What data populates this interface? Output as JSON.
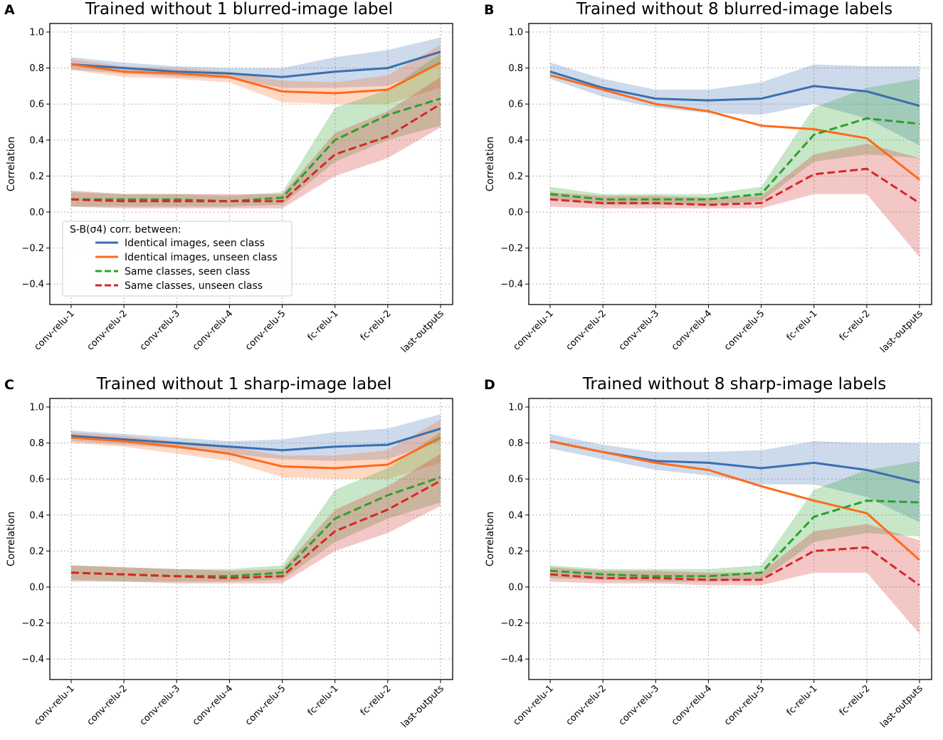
{
  "figure": {
    "categories": [
      "conv-relu-1",
      "conv-relu-2",
      "conv-relu-3",
      "conv-relu-4",
      "conv-relu-5",
      "fc-relu-1",
      "fc-relu-2",
      "last-outputs"
    ],
    "yticks": [
      "1.0",
      "0.8",
      "0.6",
      "0.4",
      "0.2",
      "0.0",
      "−0.2",
      "−0.4"
    ],
    "ylabel": "Correlation",
    "legend": {
      "title": "S-B(σ4) corr. between:",
      "entries": [
        {
          "label": "Identical images, seen class",
          "color": "#3a6fb0",
          "style": "solid"
        },
        {
          "label": "Identical images, unseen class",
          "color": "#ff6a1a",
          "style": "solid"
        },
        {
          "label": "Same classes, seen class",
          "color": "#2ca02c",
          "style": "dashed"
        },
        {
          "label": "Same classes, unseen class",
          "color": "#d62728",
          "style": "dashed"
        }
      ]
    }
  },
  "chart_data": [
    {
      "type": "line",
      "panel": "A",
      "title": "Trained without 1 blurred-image label",
      "ylabel": "Correlation",
      "ylim": [
        -0.5,
        1.0
      ],
      "grid": true,
      "legend_position": "lower-left",
      "series": [
        {
          "name": "Identical images, seen class",
          "color": "#3a6fb0",
          "style": "solid",
          "values": [
            0.82,
            0.8,
            0.78,
            0.77,
            0.75,
            0.78,
            0.8,
            0.89
          ],
          "lower": [
            0.79,
            0.77,
            0.75,
            0.74,
            0.69,
            0.69,
            0.7,
            0.82
          ],
          "upper": [
            0.86,
            0.83,
            0.81,
            0.8,
            0.8,
            0.86,
            0.9,
            0.97
          ]
        },
        {
          "name": "Identical images, unseen class",
          "color": "#ff6a1a",
          "style": "solid",
          "values": [
            0.82,
            0.78,
            0.77,
            0.75,
            0.67,
            0.66,
            0.68,
            0.83
          ],
          "lower": [
            0.79,
            0.75,
            0.74,
            0.72,
            0.61,
            0.6,
            0.6,
            0.69
          ],
          "upper": [
            0.85,
            0.81,
            0.8,
            0.78,
            0.73,
            0.72,
            0.76,
            0.93
          ]
        },
        {
          "name": "Same classes, seen class",
          "color": "#2ca02c",
          "style": "dashed",
          "values": [
            0.07,
            0.07,
            0.07,
            0.06,
            0.08,
            0.4,
            0.54,
            0.63
          ],
          "lower": [
            0.03,
            0.03,
            0.03,
            0.03,
            0.04,
            0.28,
            0.4,
            0.48
          ],
          "upper": [
            0.11,
            0.1,
            0.1,
            0.09,
            0.11,
            0.58,
            0.68,
            0.88
          ]
        },
        {
          "name": "Same classes, unseen class",
          "color": "#d62728",
          "style": "dashed",
          "values": [
            0.07,
            0.06,
            0.06,
            0.06,
            0.06,
            0.32,
            0.42,
            0.6
          ],
          "lower": [
            0.03,
            0.02,
            0.02,
            0.02,
            0.02,
            0.2,
            0.3,
            0.47
          ],
          "upper": [
            0.12,
            0.1,
            0.1,
            0.1,
            0.1,
            0.44,
            0.56,
            0.75
          ]
        }
      ]
    },
    {
      "type": "line",
      "panel": "B",
      "title": "Trained without 8 blurred-image labels",
      "ylabel": "Correlation",
      "ylim": [
        -0.5,
        1.0
      ],
      "grid": true,
      "series": [
        {
          "name": "Identical images, seen class",
          "color": "#3a6fb0",
          "style": "solid",
          "values": [
            0.78,
            0.69,
            0.63,
            0.62,
            0.63,
            0.7,
            0.67,
            0.59
          ],
          "lower": [
            0.74,
            0.64,
            0.58,
            0.55,
            0.54,
            0.6,
            0.52,
            0.37
          ],
          "upper": [
            0.83,
            0.74,
            0.68,
            0.68,
            0.72,
            0.82,
            0.81,
            0.81
          ]
        },
        {
          "name": "Identical images, unseen class",
          "color": "#ff6a1a",
          "style": "solid",
          "values": [
            0.76,
            0.68,
            0.6,
            0.56,
            0.48,
            0.46,
            0.41,
            0.18
          ],
          "lower": [
            0.72,
            0.63,
            0.53,
            0.47,
            0.4,
            0.37,
            0.33,
            -0.12
          ]
        },
        {
          "name": "Same classes, seen class",
          "color": "#2ca02c",
          "style": "dashed",
          "values": [
            0.1,
            0.07,
            0.07,
            0.07,
            0.1,
            0.43,
            0.52,
            0.49
          ],
          "lower": [
            0.07,
            0.04,
            0.04,
            0.04,
            0.06,
            0.28,
            0.32,
            0.3
          ],
          "upper": [
            0.14,
            0.1,
            0.1,
            0.1,
            0.14,
            0.58,
            0.69,
            0.74
          ]
        },
        {
          "name": "Same classes, unseen class",
          "color": "#d62728",
          "style": "dashed",
          "values": [
            0.07,
            0.05,
            0.05,
            0.04,
            0.05,
            0.21,
            0.24,
            0.05
          ],
          "lower": [
            0.03,
            0.02,
            0.02,
            0.02,
            0.02,
            0.1,
            0.1,
            -0.25
          ],
          "upper": [
            0.11,
            0.09,
            0.09,
            0.08,
            0.09,
            0.32,
            0.38,
            0.3
          ]
        }
      ]
    },
    {
      "type": "line",
      "panel": "C",
      "title": "Trained without 1 sharp-image label",
      "ylabel": "Correlation",
      "ylim": [
        -0.5,
        1.0
      ],
      "grid": true,
      "series": [
        {
          "name": "Identical images, seen class",
          "color": "#3a6fb0",
          "style": "solid",
          "values": [
            0.84,
            0.82,
            0.8,
            0.78,
            0.76,
            0.78,
            0.79,
            0.88
          ],
          "lower": [
            0.81,
            0.79,
            0.77,
            0.74,
            0.71,
            0.7,
            0.71,
            0.81
          ],
          "upper": [
            0.87,
            0.85,
            0.83,
            0.81,
            0.82,
            0.86,
            0.88,
            0.96
          ]
        },
        {
          "name": "Identical images, unseen class",
          "color": "#ff6a1a",
          "style": "solid",
          "values": [
            0.83,
            0.81,
            0.78,
            0.74,
            0.67,
            0.66,
            0.68,
            0.83
          ],
          "lower": [
            0.8,
            0.78,
            0.74,
            0.7,
            0.61,
            0.6,
            0.6,
            0.69
          ],
          "upper": [
            0.86,
            0.84,
            0.81,
            0.78,
            0.73,
            0.73,
            0.76,
            0.93
          ]
        },
        {
          "name": "Same classes, seen class",
          "color": "#2ca02c",
          "style": "dashed",
          "values": [
            0.08,
            0.07,
            0.06,
            0.06,
            0.08,
            0.38,
            0.51,
            0.61
          ],
          "lower": [
            0.04,
            0.03,
            0.03,
            0.03,
            0.04,
            0.25,
            0.38,
            0.47
          ],
          "upper": [
            0.12,
            0.11,
            0.1,
            0.1,
            0.12,
            0.54,
            0.66,
            0.86
          ]
        },
        {
          "name": "Same classes, unseen class",
          "color": "#d62728",
          "style": "dashed",
          "values": [
            0.08,
            0.07,
            0.06,
            0.05,
            0.06,
            0.31,
            0.43,
            0.59
          ],
          "lower": [
            0.03,
            0.03,
            0.02,
            0.02,
            0.02,
            0.2,
            0.3,
            0.45
          ],
          "upper": [
            0.12,
            0.11,
            0.1,
            0.09,
            0.1,
            0.43,
            0.56,
            0.74
          ]
        }
      ]
    },
    {
      "type": "line",
      "panel": "D",
      "title": "Trained without 8 sharp-image labels",
      "ylabel": "Correlation",
      "ylim": [
        -0.5,
        1.0
      ],
      "grid": true,
      "series": [
        {
          "name": "Identical images, seen class",
          "color": "#3a6fb0",
          "style": "solid",
          "values": [
            0.81,
            0.75,
            0.7,
            0.69,
            0.66,
            0.69,
            0.65,
            0.58
          ],
          "lower": [
            0.77,
            0.71,
            0.65,
            0.62,
            0.57,
            0.57,
            0.5,
            0.36
          ],
          "upper": [
            0.85,
            0.79,
            0.75,
            0.75,
            0.76,
            0.81,
            0.8,
            0.8
          ]
        },
        {
          "name": "Identical images, unseen class",
          "color": "#ff6a1a",
          "style": "solid",
          "values": [
            0.81,
            0.75,
            0.69,
            0.65,
            0.56,
            0.48,
            0.41,
            0.15
          ],
          "lower": [
            0.77,
            0.7,
            0.62,
            0.56,
            0.47,
            0.39,
            0.33,
            -0.1
          ]
        },
        {
          "name": "Same classes, seen class",
          "color": "#2ca02c",
          "style": "dashed",
          "values": [
            0.09,
            0.07,
            0.06,
            0.06,
            0.08,
            0.39,
            0.48,
            0.47
          ],
          "lower": [
            0.05,
            0.04,
            0.03,
            0.03,
            0.04,
            0.25,
            0.3,
            0.28
          ],
          "upper": [
            0.12,
            0.1,
            0.1,
            0.1,
            0.12,
            0.54,
            0.65,
            0.7
          ]
        },
        {
          "name": "Same classes, unseen class",
          "color": "#d62728",
          "style": "dashed",
          "values": [
            0.07,
            0.05,
            0.05,
            0.04,
            0.04,
            0.2,
            0.22,
            0.01
          ],
          "lower": [
            0.03,
            0.02,
            0.02,
            0.01,
            0.01,
            0.08,
            0.08,
            -0.26
          ],
          "upper": [
            0.11,
            0.09,
            0.09,
            0.08,
            0.08,
            0.31,
            0.35,
            0.26
          ]
        }
      ]
    }
  ]
}
